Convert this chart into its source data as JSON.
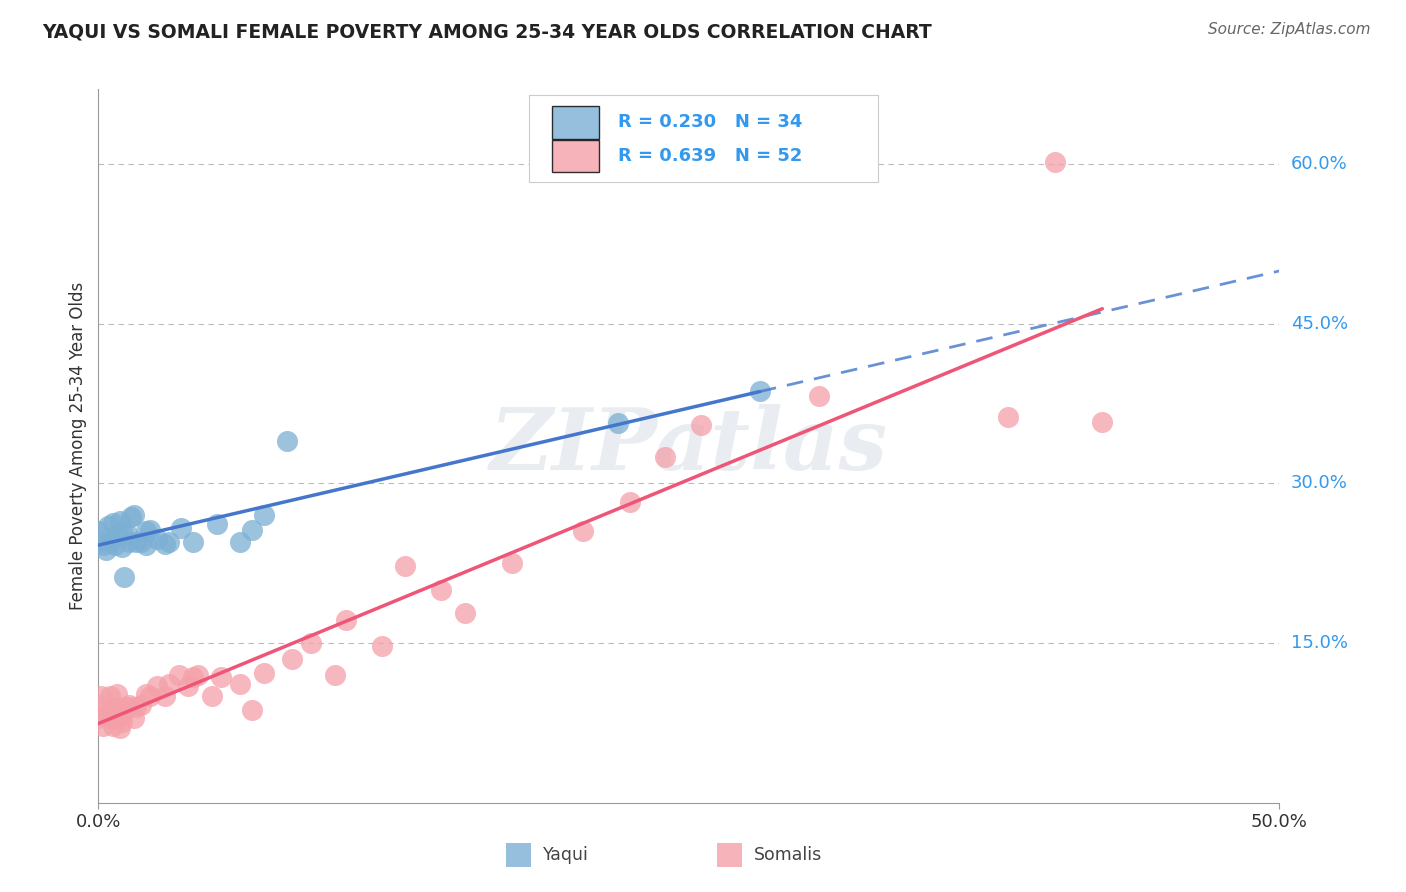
{
  "title": "YAQUI VS SOMALI FEMALE POVERTY AMONG 25-34 YEAR OLDS CORRELATION CHART",
  "source": "Source: ZipAtlas.com",
  "ylabel": "Female Poverty Among 25-34 Year Olds",
  "xlim": [
    0.0,
    0.5
  ],
  "ylim": [
    0.0,
    0.67
  ],
  "ytick_positions": [
    0.15,
    0.3,
    0.45,
    0.6
  ],
  "ytick_labels": [
    "15.0%",
    "30.0%",
    "45.0%",
    "60.0%"
  ],
  "watermark": "ZIPatlas",
  "yaqui_R": 0.23,
  "yaqui_N": 34,
  "somali_R": 0.639,
  "somali_N": 52,
  "yaqui_color": "#7BAFD4",
  "somali_color": "#F4A0A8",
  "line_yaqui_color": "#4477CC",
  "line_somali_color": "#EE5577",
  "legend_text_color": "#3399EE",
  "yaqui_x": [
    0.0,
    0.0,
    0.002,
    0.003,
    0.004,
    0.005,
    0.006,
    0.007,
    0.008,
    0.009,
    0.01,
    0.01,
    0.011,
    0.012,
    0.013,
    0.014,
    0.015,
    0.016,
    0.018,
    0.02,
    0.02,
    0.022,
    0.025,
    0.028,
    0.03,
    0.035,
    0.04,
    0.05,
    0.06,
    0.065,
    0.07,
    0.08,
    0.22,
    0.28
  ],
  "yaqui_y": [
    0.245,
    0.255,
    0.242,
    0.237,
    0.26,
    0.245,
    0.263,
    0.242,
    0.252,
    0.265,
    0.24,
    0.255,
    0.212,
    0.252,
    0.245,
    0.268,
    0.27,
    0.245,
    0.245,
    0.242,
    0.255,
    0.256,
    0.248,
    0.243,
    0.245,
    0.258,
    0.245,
    0.262,
    0.245,
    0.256,
    0.27,
    0.34,
    0.357,
    0.387
  ],
  "somali_x": [
    0.0,
    0.0,
    0.001,
    0.002,
    0.003,
    0.004,
    0.005,
    0.005,
    0.006,
    0.007,
    0.008,
    0.008,
    0.009,
    0.01,
    0.01,
    0.011,
    0.012,
    0.013,
    0.015,
    0.016,
    0.018,
    0.02,
    0.022,
    0.025,
    0.028,
    0.03,
    0.034,
    0.038,
    0.04,
    0.042,
    0.048,
    0.052,
    0.06,
    0.065,
    0.07,
    0.082,
    0.09,
    0.1,
    0.105,
    0.12,
    0.13,
    0.145,
    0.155,
    0.175,
    0.205,
    0.225,
    0.24,
    0.255,
    0.305,
    0.385,
    0.405,
    0.425
  ],
  "somali_y": [
    0.08,
    0.092,
    0.1,
    0.072,
    0.082,
    0.08,
    0.085,
    0.1,
    0.072,
    0.08,
    0.09,
    0.102,
    0.07,
    0.076,
    0.082,
    0.087,
    0.09,
    0.092,
    0.08,
    0.09,
    0.092,
    0.102,
    0.1,
    0.11,
    0.1,
    0.112,
    0.12,
    0.11,
    0.118,
    0.12,
    0.1,
    0.118,
    0.112,
    0.087,
    0.122,
    0.135,
    0.15,
    0.12,
    0.172,
    0.147,
    0.222,
    0.2,
    0.178,
    0.225,
    0.255,
    0.282,
    0.325,
    0.355,
    0.382,
    0.362,
    0.602,
    0.358
  ],
  "background_color": "#FFFFFF",
  "grid_color": "#BBBBBB",
  "title_color": "#222222",
  "right_tick_color": "#3399EE",
  "axis_color": "#999999"
}
